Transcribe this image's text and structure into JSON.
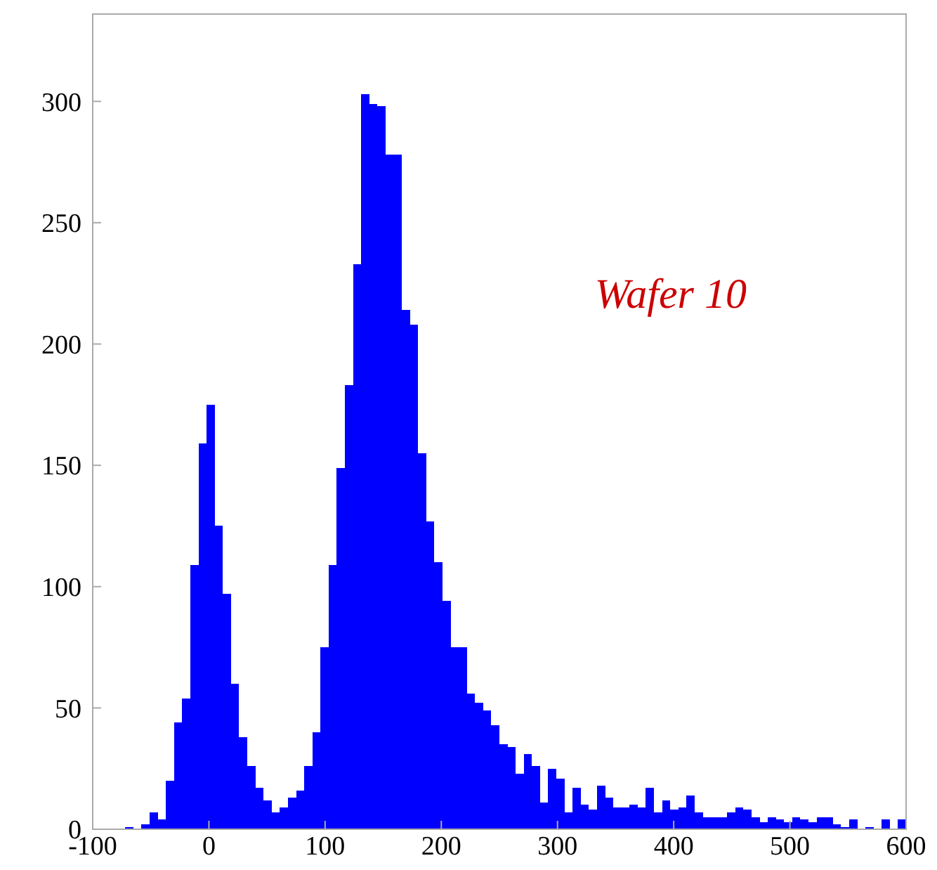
{
  "chart_data": {
    "type": "histogram",
    "color": "#0000ff",
    "bins": [
      -100,
      -93,
      -86,
      -79,
      -72,
      -65,
      -58,
      -51,
      -44,
      -37,
      -30,
      -23,
      -16,
      -9,
      -2,
      5,
      12,
      19,
      26,
      33,
      40,
      47,
      54,
      61,
      68,
      75,
      82,
      89,
      96,
      103,
      110,
      117,
      124,
      131,
      138,
      145,
      152,
      159,
      166,
      173,
      180,
      187,
      194,
      201,
      208,
      215,
      222,
      229,
      236,
      243,
      250,
      257,
      264,
      271,
      278,
      285,
      292,
      299,
      306,
      313,
      320,
      327,
      334,
      341,
      348,
      355,
      362,
      369,
      376,
      383,
      390,
      397,
      404,
      411,
      418,
      425,
      432,
      439,
      446,
      453,
      460,
      467,
      474,
      481,
      488,
      495,
      502,
      509,
      516,
      523,
      530,
      537,
      544,
      551,
      558,
      565,
      572,
      579,
      586,
      593,
      600
    ],
    "values": [
      0,
      0,
      0,
      0,
      1,
      0,
      2,
      7,
      4,
      20,
      44,
      54,
      109,
      159,
      175,
      125,
      97,
      60,
      38,
      26,
      17,
      12,
      7,
      9,
      13,
      16,
      26,
      40,
      75,
      109,
      149,
      183,
      233,
      303,
      299,
      298,
      278,
      278,
      214,
      208,
      155,
      127,
      110,
      94,
      75,
      75,
      56,
      52,
      49,
      43,
      35,
      34,
      23,
      31,
      26,
      11,
      25,
      21,
      7,
      17,
      10,
      8,
      18,
      13,
      9,
      9,
      10,
      9,
      17,
      7,
      12,
      8,
      9,
      14,
      7,
      5,
      5,
      5,
      7,
      9,
      8,
      5,
      3,
      5,
      4,
      3,
      5,
      4,
      3,
      5,
      5,
      2,
      1,
      4,
      0,
      1,
      0,
      4,
      0,
      4
    ],
    "xlim": [
      -100,
      600
    ],
    "ylim": [
      0,
      336
    ],
    "xticks": [
      -100,
      0,
      100,
      200,
      300,
      400,
      500,
      600
    ],
    "yticks": [
      0,
      50,
      100,
      150,
      200,
      250,
      300
    ],
    "grid": false,
    "annotations": [
      "Wafer 10"
    ]
  }
}
